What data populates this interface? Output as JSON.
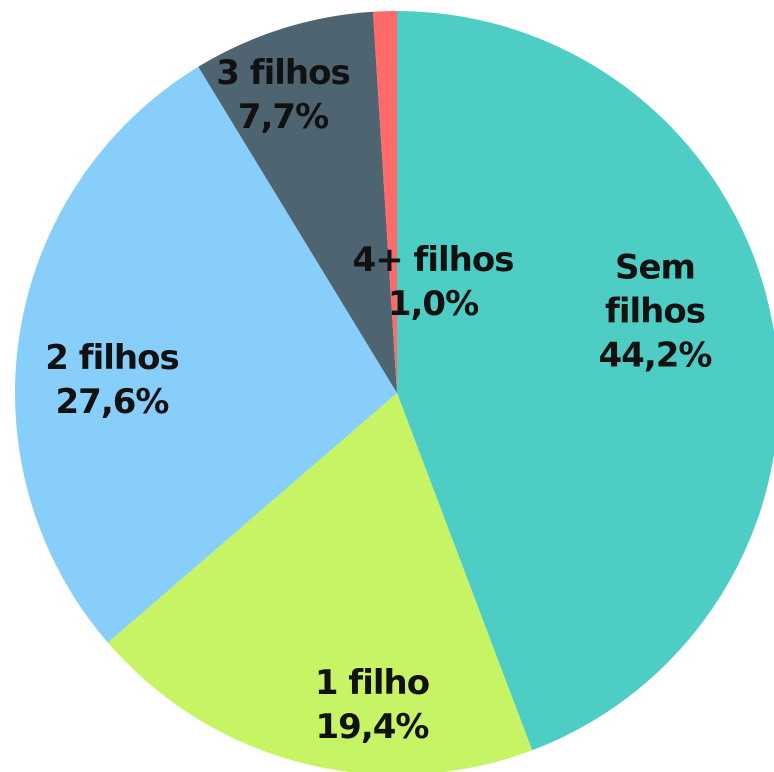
{
  "chart_data": {
    "type": "pie",
    "categories": [
      "Sem filhos",
      "1 filho",
      "2 filhos",
      "3 filhos",
      "4+ filhos"
    ],
    "values": [
      44.2,
      19.4,
      27.6,
      7.7,
      1.0
    ],
    "value_labels": [
      "44,2%",
      "19,4%",
      "27,6%",
      "7,7%",
      "1,0%"
    ],
    "colors": [
      "#4ecdc4",
      "#c7f464",
      "#87cefa",
      "#4f6471",
      "#ff6b6b"
    ]
  }
}
